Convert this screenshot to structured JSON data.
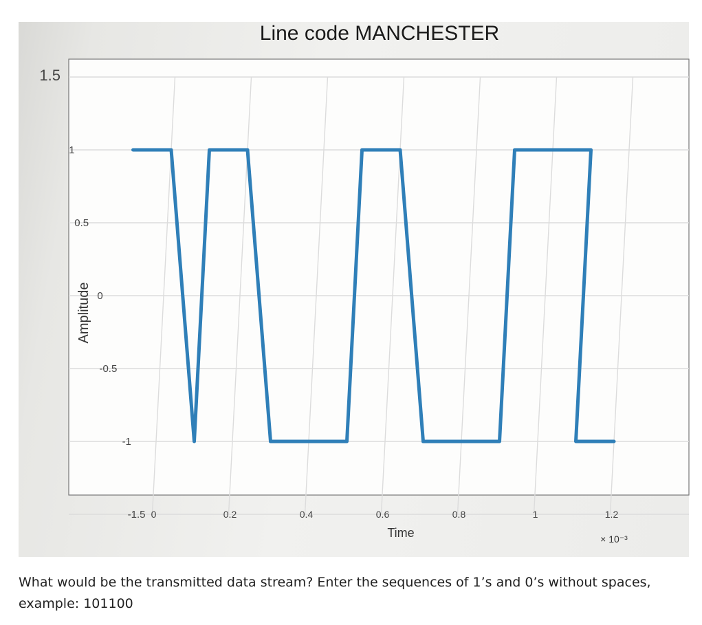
{
  "chart_data": {
    "type": "line",
    "title": "Line code MANCHESTER",
    "xlabel": "Time",
    "ylabel": "Amplitude",
    "x_scale_label": "× 10⁻³",
    "xlim": [
      0,
      1.2
    ],
    "ylim": [
      -1.5,
      1.5
    ],
    "x_ticks": [
      0,
      0.2,
      0.4,
      0.6,
      0.8,
      1,
      1.2
    ],
    "x_tick_labels": [
      "0",
      "0.2",
      "0.4",
      "0.6",
      "0.8",
      "1",
      "1.2"
    ],
    "y_ticks": [
      -1.5,
      -1,
      -0.5,
      0,
      0.5,
      1,
      1.5
    ],
    "y_tick_labels": [
      "-1.5",
      "-1",
      "-0.5",
      "0",
      "0.5",
      "1",
      "1.5"
    ],
    "grid": true,
    "series": [
      {
        "color": "#2f7fb8",
        "x": [
          -0.1,
          0,
          0.1,
          0.1,
          0.2,
          0.3,
          0.3,
          0.4,
          0.5,
          0.5,
          0.6,
          0.7,
          0.7,
          0.8,
          0.9,
          0.9,
          1.0,
          1.1,
          1.1,
          1.2
        ],
        "y": [
          1,
          1,
          -1,
          1,
          1,
          -1,
          -1,
          -1,
          -1,
          1,
          1,
          -1,
          -1,
          -1,
          -1,
          1,
          1,
          1,
          -1,
          -1
        ]
      }
    ]
  },
  "question": {
    "line1": "What would be the transmitted data stream? Enter the sequences of 1’s and 0’s without spaces,",
    "line2": "example: 101100"
  }
}
